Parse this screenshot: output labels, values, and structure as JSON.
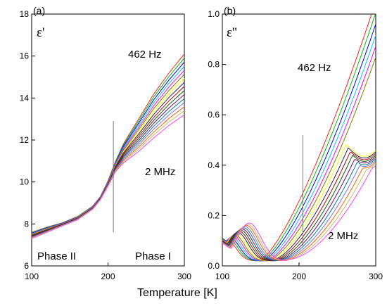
{
  "colors": [
    "#ff2020",
    "#00c000",
    "#0000ff",
    "#00c8ff",
    "#ff00ff",
    "#7f7f00",
    "#ffff00",
    "#202060",
    "#c00000",
    "#006000",
    "#800080",
    "#008080",
    "#7070ff",
    "#ff6000",
    "#c0c060",
    "#ff40ff"
  ],
  "xlabel": "Temperature [K]",
  "chart_data": [
    {
      "type": "line",
      "panel": "(a)",
      "ylabel": "ε'",
      "xlim": [
        100,
        300
      ],
      "ylim": [
        6,
        18
      ],
      "x_ticks": [
        "100",
        "200",
        "300"
      ],
      "y_ticks": [
        "6",
        "8",
        "10",
        "12",
        "14",
        "16",
        "18"
      ],
      "grid": false,
      "transition_marker_x": 207,
      "transition_marker_range": [
        7.6,
        12.9
      ],
      "annotations": {
        "top_series": "462 Hz",
        "bottom_series": "2 MHz",
        "left_phase": "Phase II",
        "right_phase": "Phase I"
      },
      "series_count": 16,
      "x": [
        100,
        120,
        140,
        160,
        180,
        190,
        200,
        210,
        220,
        240,
        260,
        280,
        300
      ],
      "series_top": [
        7.6,
        7.85,
        8.05,
        8.35,
        8.85,
        9.3,
        10.05,
        11.0,
        11.8,
        13.0,
        14.2,
        15.2,
        16.1
      ],
      "series_bottom": [
        7.3,
        7.6,
        7.9,
        8.2,
        8.7,
        9.15,
        9.8,
        10.5,
        10.9,
        11.45,
        12.1,
        12.7,
        13.2
      ]
    },
    {
      "type": "line",
      "panel": "(b)",
      "ylabel": "ε''",
      "xlim": [
        100,
        300
      ],
      "ylim": [
        0.0,
        1.0
      ],
      "x_ticks": [
        "100",
        "200",
        "300"
      ],
      "y_ticks": [
        "0.0",
        "0.2",
        "0.4",
        "0.6",
        "0.8",
        "1.0"
      ],
      "grid": false,
      "transition_marker_x": 205,
      "transition_marker_range": [
        0.08,
        0.52
      ],
      "annotations": {
        "top_series": "462 Hz",
        "bottom_series": "2 MHz"
      },
      "series_count": 16,
      "hump_peak_x": [
        107,
        135
      ],
      "hump_peak_y": [
        0.1,
        0.17
      ],
      "minimum_x": [
        150,
        185
      ],
      "end_value_top": 1.0,
      "end_value_bottom": 0.43
    }
  ]
}
